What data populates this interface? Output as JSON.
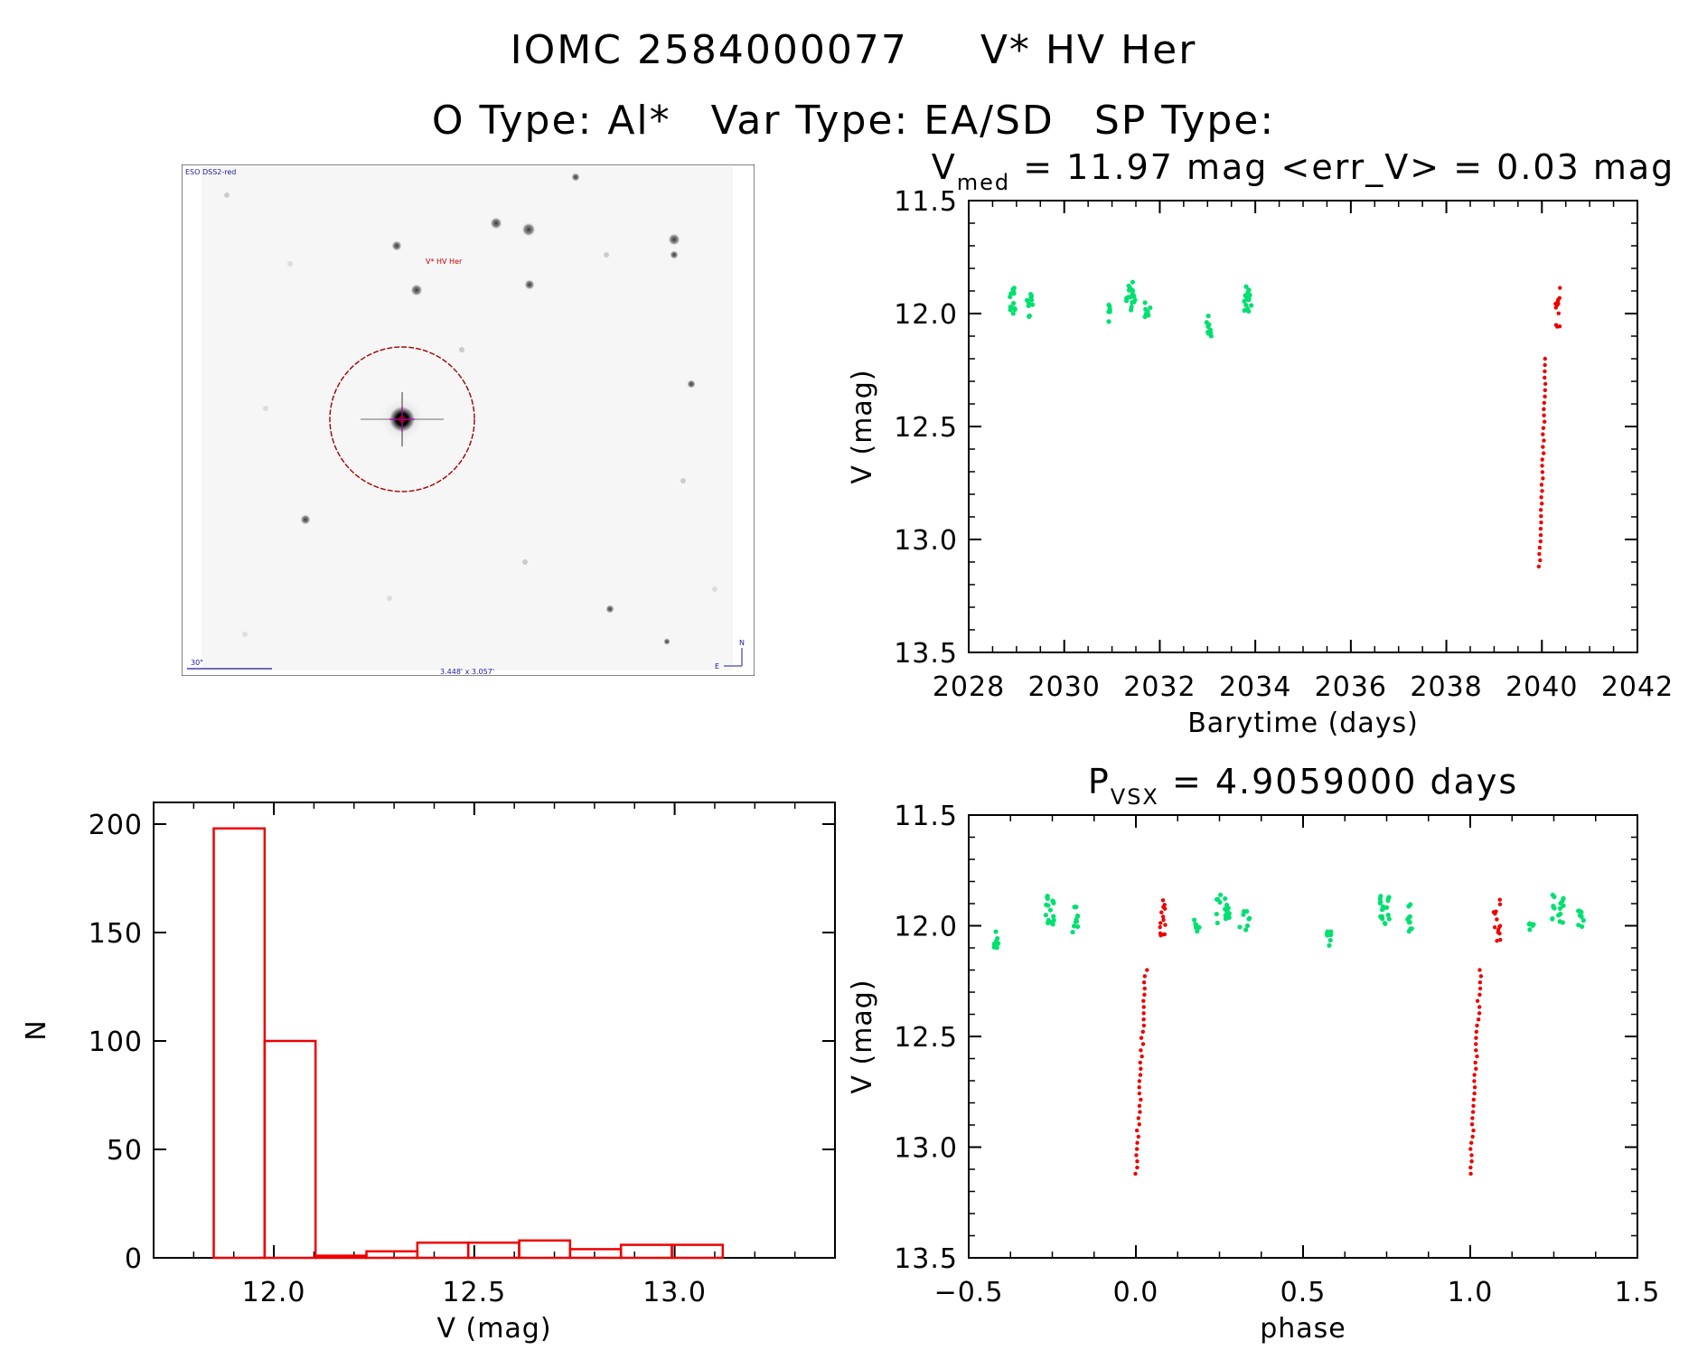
{
  "header": {
    "object_id": "IOMC 2584000077",
    "object_name": "V* HV Her",
    "otype": "O Type: Al*",
    "vartype": "Var Type: EA/SD",
    "sptype": "SP Type:"
  },
  "image_panel": {
    "survey": "ESO DSS2-red",
    "target_label": "V* HV Her",
    "scale_label": "30\"",
    "size_label": "3.448' x 3.057'",
    "compass_n": "N",
    "compass_e": "E"
  },
  "colors": {
    "bright": "#00e070",
    "faint": "#ee0000",
    "hist": "#ee0000",
    "axis": "#000000"
  },
  "chart_data": [
    {
      "id": "lightcurve",
      "type": "scatter",
      "title_parts": [
        "V",
        "med",
        " = 11.97 mag <err_V> = 0.03 mag"
      ],
      "xlabel": "Barytime (days)",
      "ylabel": "V (mag)",
      "xlim": [
        2028,
        2042
      ],
      "ylim": [
        13.5,
        11.5
      ],
      "xticks": [
        "2028",
        "2030",
        "2032",
        "2034",
        "2036",
        "2038",
        "2040",
        "2042"
      ],
      "yticks": [
        "11.5",
        "12.0",
        "12.5",
        "13.0",
        "13.5"
      ],
      "series": [
        {
          "class": "bright",
          "clusters": [
            {
              "x": [
                2028.85,
                2028.98
              ],
              "y": [
                11.86,
                12.0
              ],
              "n": 14
            },
            {
              "x": [
                2029.2,
                2029.34
              ],
              "y": [
                11.9,
                12.03
              ],
              "n": 10
            },
            {
              "x": [
                2030.9,
                2030.98
              ],
              "y": [
                11.96,
                12.04
              ],
              "n": 6
            },
            {
              "x": [
                2031.3,
                2031.5
              ],
              "y": [
                11.86,
                11.99
              ],
              "n": 16
            },
            {
              "x": [
                2031.68,
                2031.8
              ],
              "y": [
                11.93,
                12.02
              ],
              "n": 8
            },
            {
              "x": [
                2032.98,
                2033.1
              ],
              "y": [
                12.01,
                12.1
              ],
              "n": 10
            },
            {
              "x": [
                2033.75,
                2033.92
              ],
              "y": [
                11.88,
                12.0
              ],
              "n": 16
            }
          ]
        },
        {
          "class": "faint",
          "clusters": [
            {
              "x": [
                2039.95,
                2040.08
              ],
              "y": [
                12.2,
                13.12
              ],
              "n": 34,
              "trend": true
            },
            {
              "x": [
                2040.28,
                2040.38
              ],
              "y": [
                11.88,
                12.07
              ],
              "n": 14
            }
          ]
        }
      ]
    },
    {
      "id": "histogram",
      "type": "bar",
      "xlabel": "V (mag)",
      "ylabel": "N",
      "xlim": [
        11.7,
        13.4
      ],
      "ylim": [
        0,
        210
      ],
      "xticks": [
        "12.0",
        "12.5",
        "13.0"
      ],
      "yticks": [
        "0",
        "50",
        "100",
        "150",
        "200"
      ],
      "bins": [
        {
          "x0": 11.85,
          "x1": 11.977,
          "count": 198
        },
        {
          "x0": 11.977,
          "x1": 12.104,
          "count": 100
        },
        {
          "x0": 12.104,
          "x1": 12.231,
          "count": 1
        },
        {
          "x0": 12.231,
          "x1": 12.358,
          "count": 3
        },
        {
          "x0": 12.358,
          "x1": 12.485,
          "count": 7
        },
        {
          "x0": 12.485,
          "x1": 12.612,
          "count": 7
        },
        {
          "x0": 12.612,
          "x1": 12.739,
          "count": 8
        },
        {
          "x0": 12.739,
          "x1": 12.866,
          "count": 4
        },
        {
          "x0": 12.866,
          "x1": 12.993,
          "count": 6
        },
        {
          "x0": 12.993,
          "x1": 13.12,
          "count": 6
        }
      ]
    },
    {
      "id": "phased",
      "type": "scatter",
      "title_parts": [
        "P",
        "VSX",
        " = 4.9059000 days"
      ],
      "xlabel": "phase",
      "ylabel": "V (mag)",
      "xlim": [
        -0.5,
        1.5
      ],
      "ylim": [
        13.5,
        11.5
      ],
      "xticks": [
        "−0.5",
        "0.0",
        "0.5",
        "1.0",
        "1.5"
      ],
      "yticks": [
        "11.5",
        "12.0",
        "12.5",
        "13.0",
        "13.5"
      ],
      "series": [
        {
          "class": "bright",
          "clusters": [
            {
              "x": [
                -0.43,
                -0.41
              ],
              "y": [
                12.02,
                12.1
              ],
              "n": 8
            },
            {
              "x": [
                -0.27,
                -0.24
              ],
              "y": [
                11.86,
                12.0
              ],
              "n": 18
            },
            {
              "x": [
                -0.19,
                -0.17
              ],
              "y": [
                11.9,
                12.03
              ],
              "n": 10
            },
            {
              "x": [
                0.17,
                0.19
              ],
              "y": [
                11.96,
                12.03
              ],
              "n": 6
            },
            {
              "x": [
                0.24,
                0.28
              ],
              "y": [
                11.86,
                11.99
              ],
              "n": 16
            },
            {
              "x": [
                0.31,
                0.34
              ],
              "y": [
                11.93,
                12.02
              ],
              "n": 8
            },
            {
              "x": [
                0.57,
                0.59
              ],
              "y": [
                12.02,
                12.1
              ],
              "n": 8
            },
            {
              "x": [
                0.73,
                0.76
              ],
              "y": [
                11.86,
                12.0
              ],
              "n": 18
            },
            {
              "x": [
                0.81,
                0.83
              ],
              "y": [
                11.9,
                12.03
              ],
              "n": 10
            },
            {
              "x": [
                1.17,
                1.19
              ],
              "y": [
                11.96,
                12.03
              ],
              "n": 6
            },
            {
              "x": [
                1.24,
                1.28
              ],
              "y": [
                11.86,
                11.99
              ],
              "n": 16
            },
            {
              "x": [
                1.31,
                1.34
              ],
              "y": [
                11.93,
                12.02
              ],
              "n": 8
            }
          ]
        },
        {
          "class": "faint",
          "clusters": [
            {
              "x": [
                0.0,
                0.03
              ],
              "y": [
                12.2,
                13.12
              ],
              "n": 34,
              "trend": true
            },
            {
              "x": [
                0.07,
                0.09
              ],
              "y": [
                11.88,
                12.07
              ],
              "n": 14
            },
            {
              "x": [
                1.0,
                1.03
              ],
              "y": [
                12.2,
                13.12
              ],
              "n": 34,
              "trend": true
            },
            {
              "x": [
                1.07,
                1.09
              ],
              "y": [
                11.88,
                12.07
              ],
              "n": 14
            }
          ]
        }
      ]
    }
  ]
}
